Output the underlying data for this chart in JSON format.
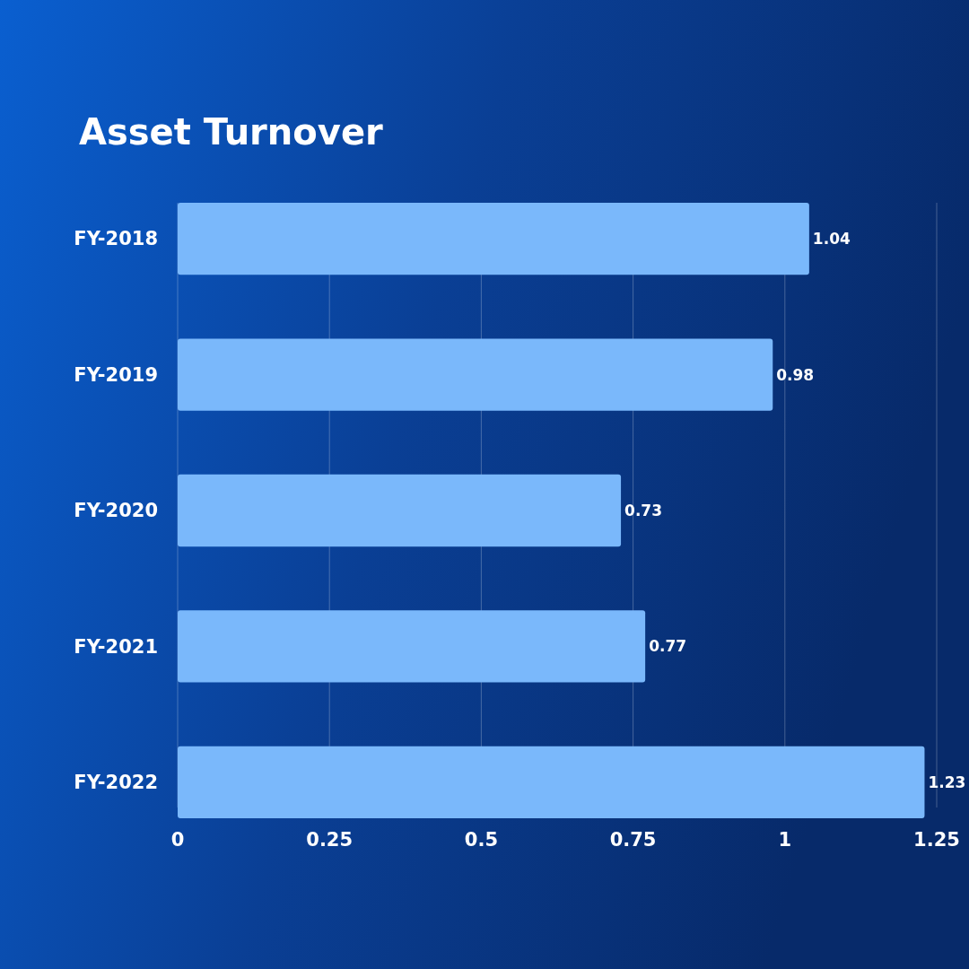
{
  "chart_data": {
    "type": "bar",
    "orientation": "horizontal",
    "title": "Asset Turnover",
    "categories": [
      "FY-2018",
      "FY-2019",
      "FY-2020",
      "FY-2021",
      "FY-2022"
    ],
    "values": [
      1.04,
      0.98,
      0.73,
      0.77,
      1.23
    ],
    "color": "#7ab8fb",
    "xlim": [
      0,
      1.25
    ],
    "xticks": [
      0,
      0.25,
      0.5,
      0.75,
      1,
      1.25
    ],
    "grid": "x",
    "data_labels": true
  }
}
